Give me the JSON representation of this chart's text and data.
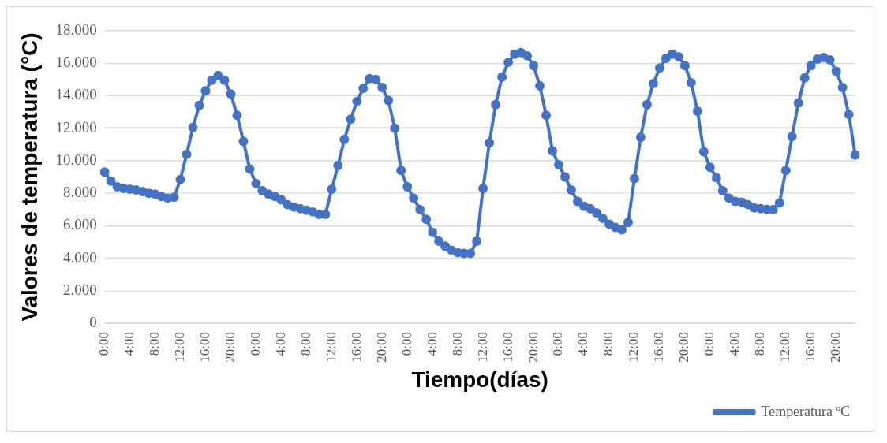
{
  "chart_data": {
    "type": "line",
    "xlabel": "Tiempo(días)",
    "ylabel": "Valores de temperatura (°C)",
    "categories": [
      "0:00",
      null,
      null,
      null,
      "4:00",
      null,
      null,
      null,
      "8:00",
      null,
      null,
      null,
      "12:00",
      null,
      null,
      null,
      "16:00",
      null,
      null,
      null,
      "20:00",
      null,
      null,
      null,
      "0:00",
      null,
      null,
      null,
      "4:00",
      null,
      null,
      null,
      "8:00",
      null,
      null,
      null,
      "12:00",
      null,
      null,
      null,
      "16:00",
      null,
      null,
      null,
      "20:00",
      null,
      null,
      null,
      "0:00",
      null,
      null,
      null,
      "4:00",
      null,
      null,
      null,
      "8:00",
      null,
      null,
      null,
      "12:00",
      null,
      null,
      null,
      "16:00",
      null,
      null,
      null,
      "20:00",
      null,
      null,
      null,
      "0:00",
      null,
      null,
      null,
      "4:00",
      null,
      null,
      null,
      "8:00",
      null,
      null,
      null,
      "12:00",
      null,
      null,
      null,
      "16:00",
      null,
      null,
      null,
      "20:00",
      null,
      null,
      null,
      "0:00",
      null,
      null,
      null,
      "4:00",
      null,
      null,
      null,
      "8:00",
      null,
      null,
      null,
      "12:00",
      null,
      null,
      null,
      "16:00",
      null,
      null,
      null,
      "20:00",
      null,
      null,
      null
    ],
    "series": [
      {
        "name": "Temperatura ºC",
        "color": "#4472c4",
        "values": [
          9300,
          8750,
          8400,
          8300,
          8250,
          8200,
          8100,
          8000,
          7950,
          7800,
          7700,
          7750,
          8850,
          10400,
          12050,
          13400,
          14300,
          14950,
          15250,
          14950,
          14100,
          12800,
          11200,
          9500,
          8600,
          8150,
          7950,
          7800,
          7600,
          7300,
          7150,
          7050,
          6950,
          6850,
          6700,
          6700,
          8250,
          9700,
          11300,
          12550,
          13650,
          14450,
          15050,
          15000,
          14500,
          13700,
          12000,
          9400,
          8400,
          7700,
          7000,
          6400,
          5600,
          5050,
          4750,
          4500,
          4350,
          4300,
          4300,
          5050,
          8300,
          11100,
          13450,
          15150,
          16050,
          16550,
          16650,
          16450,
          15850,
          14600,
          12800,
          10600,
          9750,
          9000,
          8200,
          7500,
          7200,
          7050,
          6800,
          6450,
          6100,
          5900,
          5750,
          6200,
          8900,
          11450,
          13450,
          14750,
          15700,
          16300,
          16550,
          16400,
          15850,
          14800,
          13050,
          10550,
          9600,
          8950,
          8150,
          7700,
          7500,
          7450,
          7300,
          7100,
          7050,
          7000,
          7000,
          7400,
          9400,
          11500,
          13550,
          15100,
          15850,
          16250,
          16350,
          16200,
          15500,
          14500,
          12850,
          10350
        ]
      }
    ],
    "ylim": [
      0,
      18000
    ],
    "yticks": [
      0,
      {
        "value": 2000,
        "label": "2.000"
      },
      {
        "value": 4000,
        "label": "4.000"
      },
      {
        "value": 6000,
        "label": "6.000"
      },
      {
        "value": 8000,
        "label": "8.000"
      },
      {
        "value": 10000,
        "label": "10.000"
      },
      {
        "value": 12000,
        "label": "12.000"
      },
      {
        "value": 14000,
        "label": "14.000"
      },
      {
        "value": 16000,
        "label": "16.000"
      },
      {
        "value": 18000,
        "label": "18.000"
      }
    ],
    "grid": "y",
    "legend": "bottom right",
    "marker": "circle",
    "line_style": "solid"
  }
}
